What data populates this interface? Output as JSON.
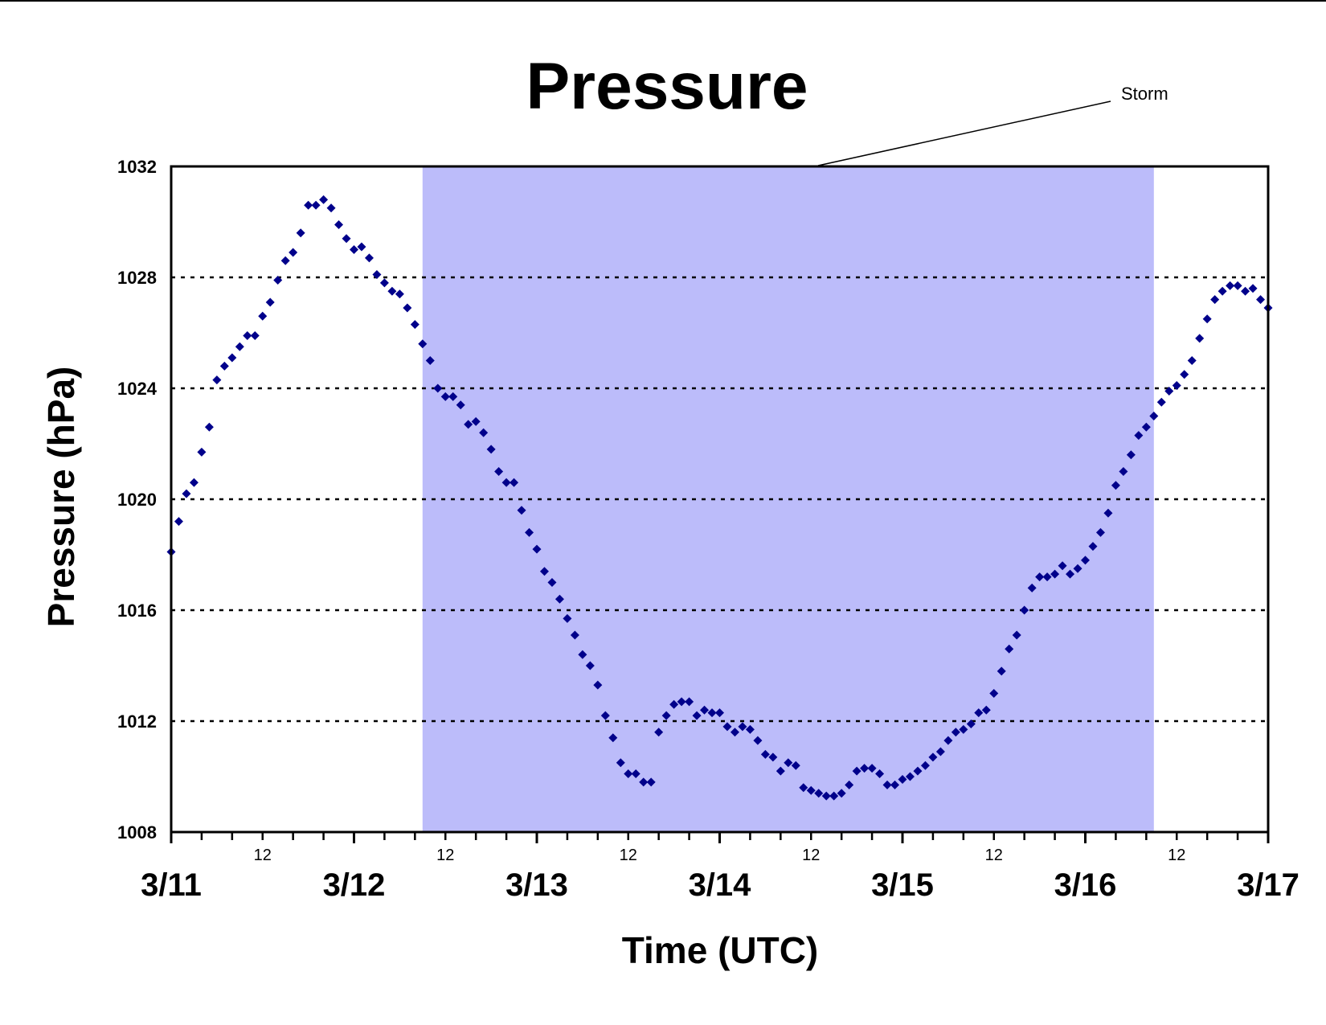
{
  "chart_data": {
    "type": "scatter",
    "title": "Pressure",
    "xlabel": "Time (UTC)",
    "ylabel": "Pressure (hPa)",
    "ylim": [
      1008,
      1032
    ],
    "yticks": [
      1008,
      1012,
      1016,
      1020,
      1024,
      1028,
      1032
    ],
    "xlim_hours": [
      0,
      144
    ],
    "x_day_labels": [
      "3/11",
      "3/12",
      "3/13",
      "3/14",
      "3/15",
      "3/16",
      "3/17"
    ],
    "x_midday_label": "12",
    "grid": "horizontal dotted",
    "marker_color": "#00008b",
    "annotation": {
      "text": "Storm",
      "shaded_from_hour": 33,
      "shaded_to_hour": 129,
      "shade_color": "#bcbcfa"
    },
    "series": [
      {
        "values": [
          [
            0.0,
            1018.1
          ],
          [
            1.0,
            1019.2
          ],
          [
            2.0,
            1020.2
          ],
          [
            3.0,
            1020.6
          ],
          [
            4.0,
            1021.7
          ],
          [
            5.0,
            1022.6
          ],
          [
            6.0,
            1024.3
          ],
          [
            7.0,
            1024.8
          ],
          [
            8.0,
            1025.1
          ],
          [
            9.0,
            1025.5
          ],
          [
            10.0,
            1025.9
          ],
          [
            11.0,
            1025.9
          ],
          [
            12.0,
            1026.6
          ],
          [
            13.0,
            1027.1
          ],
          [
            14.0,
            1027.9
          ],
          [
            15.0,
            1028.6
          ],
          [
            16.0,
            1028.9
          ],
          [
            17.0,
            1029.6
          ],
          [
            18.0,
            1030.6
          ],
          [
            19.0,
            1030.6
          ],
          [
            20.0,
            1030.8
          ],
          [
            21.0,
            1030.5
          ],
          [
            22.0,
            1029.9
          ],
          [
            23.0,
            1029.4
          ],
          [
            24.0,
            1029.0
          ],
          [
            25.0,
            1029.1
          ],
          [
            26.0,
            1028.7
          ],
          [
            27.0,
            1028.1
          ],
          [
            28.0,
            1027.8
          ],
          [
            29.0,
            1027.5
          ],
          [
            30.0,
            1027.4
          ],
          [
            31.0,
            1026.9
          ],
          [
            32.0,
            1026.3
          ],
          [
            33.0,
            1025.6
          ],
          [
            34.0,
            1025.0
          ],
          [
            35.0,
            1024.0
          ],
          [
            36.0,
            1023.7
          ],
          [
            37.0,
            1023.7
          ],
          [
            38.0,
            1023.4
          ],
          [
            39.0,
            1022.7
          ],
          [
            40.0,
            1022.8
          ],
          [
            41.0,
            1022.4
          ],
          [
            42.0,
            1021.8
          ],
          [
            43.0,
            1021.0
          ],
          [
            44.0,
            1020.6
          ],
          [
            45.0,
            1020.6
          ],
          [
            46.0,
            1019.6
          ],
          [
            47.0,
            1018.8
          ],
          [
            48.0,
            1018.2
          ],
          [
            49.0,
            1017.4
          ],
          [
            50.0,
            1017.0
          ],
          [
            51.0,
            1016.4
          ],
          [
            52.0,
            1015.7
          ],
          [
            53.0,
            1015.1
          ],
          [
            54.0,
            1014.4
          ],
          [
            55.0,
            1014.0
          ],
          [
            56.0,
            1013.3
          ],
          [
            57.0,
            1012.2
          ],
          [
            58.0,
            1011.4
          ],
          [
            59.0,
            1010.5
          ],
          [
            60.0,
            1010.1
          ],
          [
            61.0,
            1010.1
          ],
          [
            62.0,
            1009.8
          ],
          [
            63.0,
            1009.8
          ],
          [
            64.0,
            1011.6
          ],
          [
            65.0,
            1012.2
          ],
          [
            66.0,
            1012.6
          ],
          [
            67.0,
            1012.7
          ],
          [
            68.0,
            1012.7
          ],
          [
            69.0,
            1012.2
          ],
          [
            70.0,
            1012.4
          ],
          [
            71.0,
            1012.3
          ],
          [
            72.0,
            1012.3
          ],
          [
            73.0,
            1011.8
          ],
          [
            74.0,
            1011.6
          ],
          [
            75.0,
            1011.8
          ],
          [
            76.0,
            1011.7
          ],
          [
            77.0,
            1011.3
          ],
          [
            78.0,
            1010.8
          ],
          [
            79.0,
            1010.7
          ],
          [
            80.0,
            1010.2
          ],
          [
            81.0,
            1010.5
          ],
          [
            82.0,
            1010.4
          ],
          [
            83.0,
            1009.6
          ],
          [
            84.0,
            1009.5
          ],
          [
            85.0,
            1009.4
          ],
          [
            86.0,
            1009.3
          ],
          [
            87.0,
            1009.3
          ],
          [
            88.0,
            1009.4
          ],
          [
            89.0,
            1009.7
          ],
          [
            90.0,
            1010.2
          ],
          [
            91.0,
            1010.3
          ],
          [
            92.0,
            1010.3
          ],
          [
            93.0,
            1010.1
          ],
          [
            94.0,
            1009.7
          ],
          [
            95.0,
            1009.7
          ],
          [
            96.0,
            1009.9
          ],
          [
            97.0,
            1010.0
          ],
          [
            98.0,
            1010.2
          ],
          [
            99.0,
            1010.4
          ],
          [
            100.0,
            1010.7
          ],
          [
            101.0,
            1010.9
          ],
          [
            102.0,
            1011.3
          ],
          [
            103.0,
            1011.6
          ],
          [
            104.0,
            1011.7
          ],
          [
            105.0,
            1011.9
          ],
          [
            106.0,
            1012.3
          ],
          [
            107.0,
            1012.4
          ],
          [
            108.0,
            1013.0
          ],
          [
            109.0,
            1013.8
          ],
          [
            110.0,
            1014.6
          ],
          [
            111.0,
            1015.1
          ],
          [
            112.0,
            1016.0
          ],
          [
            113.0,
            1016.8
          ],
          [
            114.0,
            1017.2
          ],
          [
            115.0,
            1017.2
          ],
          [
            116.0,
            1017.3
          ],
          [
            117.0,
            1017.6
          ],
          [
            118.0,
            1017.3
          ],
          [
            119.0,
            1017.5
          ],
          [
            120.0,
            1017.8
          ],
          [
            121.0,
            1018.3
          ],
          [
            122.0,
            1018.8
          ],
          [
            123.0,
            1019.5
          ],
          [
            124.0,
            1020.5
          ],
          [
            125.0,
            1021.0
          ],
          [
            126.0,
            1021.6
          ],
          [
            127.0,
            1022.3
          ],
          [
            128.0,
            1022.6
          ],
          [
            129.0,
            1023.0
          ],
          [
            130.0,
            1023.5
          ],
          [
            131.0,
            1023.9
          ],
          [
            132.0,
            1024.1
          ],
          [
            133.0,
            1024.5
          ],
          [
            134.0,
            1025.0
          ],
          [
            135.0,
            1025.8
          ],
          [
            136.0,
            1026.5
          ],
          [
            137.0,
            1027.2
          ],
          [
            138.0,
            1027.5
          ],
          [
            139.0,
            1027.7
          ],
          [
            140.0,
            1027.7
          ],
          [
            141.0,
            1027.5
          ],
          [
            142.0,
            1027.6
          ],
          [
            143.0,
            1027.2
          ],
          [
            144.0,
            1026.9
          ]
        ]
      }
    ]
  }
}
